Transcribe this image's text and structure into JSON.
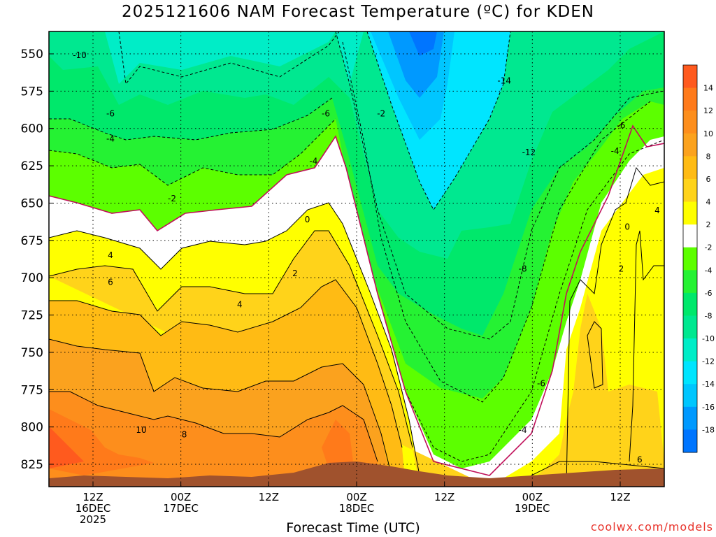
{
  "title": "2025121606 NAM Forecast Temperature (ºC) for KDEN",
  "xaxis_title": "Forecast Time (UTC)",
  "credit": "coolwx.com/models",
  "colors": {
    "t_ge_14": "#ff5a1e",
    "t_12_14": "#ff7a1a",
    "t_10_12": "#fd8e1c",
    "t_8_10": "#fba21e",
    "t_6_8": "#ffbb14",
    "t_4_6": "#ffd31a",
    "t_2_4": "#ffff00",
    "t_m2_2": "#ffffff",
    "t_m4_m2": "#5cff00",
    "t_m6_m4": "#25f233",
    "t_m8_m6": "#00e86b",
    "t_m10_m8": "#00e890",
    "t_m12_m10": "#00edc7",
    "t_m14_m12": "#00e5ff",
    "t_m16_m14": "#00c6ff",
    "t_m18_m16": "#0099ff",
    "t_le_m18": "#0075ff",
    "ground": "#a0522d",
    "zero_line": "#c0105a"
  },
  "chart_data": {
    "type": "heatmap",
    "title": "2025121606 NAM Forecast Temperature (ºC) for KDEN",
    "xlabel": "Forecast Time (UTC)",
    "ylabel": "",
    "ylim": [
      840,
      535
    ],
    "y_ticks": [
      550,
      575,
      600,
      625,
      650,
      675,
      700,
      725,
      750,
      775,
      800,
      825
    ],
    "x_ticks": [
      {
        "line1": "12Z",
        "line2": "16DEC",
        "line3": "2025"
      },
      {
        "line1": "00Z",
        "line2": "17DEC",
        "line3": ""
      },
      {
        "line1": "12Z",
        "line2": "",
        "line3": ""
      },
      {
        "line1": "00Z",
        "line2": "18DEC",
        "line3": ""
      },
      {
        "line1": "12Z",
        "line2": "",
        "line3": ""
      },
      {
        "line1": "00Z",
        "line2": "19DEC",
        "line3": ""
      },
      {
        "line1": "12Z",
        "line2": "",
        "line3": ""
      }
    ],
    "colorbar_levels": [
      14,
      12,
      10,
      8,
      6,
      4,
      2,
      -2,
      -4,
      -6,
      -8,
      -10,
      -12,
      -14,
      -16,
      -18
    ],
    "contour_labels": [
      {
        "text": "-10",
        "t": 0.05,
        "p": 551
      },
      {
        "text": "-6",
        "t": 0.1,
        "p": 590
      },
      {
        "text": "-4",
        "t": 0.1,
        "p": 607
      },
      {
        "text": "-6",
        "t": 0.45,
        "p": 590
      },
      {
        "text": "-2",
        "t": 0.54,
        "p": 590
      },
      {
        "text": "-4",
        "t": 0.43,
        "p": 622
      },
      {
        "text": "-2",
        "t": 0.2,
        "p": 647
      },
      {
        "text": "0",
        "t": 0.42,
        "p": 661
      },
      {
        "text": "4",
        "t": 0.1,
        "p": 685
      },
      {
        "text": "6",
        "t": 0.1,
        "p": 703
      },
      {
        "text": "2",
        "t": 0.4,
        "p": 697
      },
      {
        "text": "4",
        "t": 0.31,
        "p": 718
      },
      {
        "text": "10",
        "t": 0.15,
        "p": 802
      },
      {
        "text": "8",
        "t": 0.22,
        "p": 805
      },
      {
        "text": "-14",
        "t": 0.74,
        "p": 568
      },
      {
        "text": "-12",
        "t": 0.78,
        "p": 616
      },
      {
        "text": "-8",
        "t": 0.77,
        "p": 694
      },
      {
        "text": "-6",
        "t": 0.8,
        "p": 771
      },
      {
        "text": "-4",
        "t": 0.77,
        "p": 802
      },
      {
        "text": "-6",
        "t": 0.93,
        "p": 598
      },
      {
        "text": "-4",
        "t": 0.92,
        "p": 615
      },
      {
        "text": "0",
        "t": 0.94,
        "p": 666
      },
      {
        "text": "2",
        "t": 0.93,
        "p": 694
      },
      {
        "text": "4",
        "t": 1.02,
        "p": 655
      },
      {
        "text": "6",
        "t": 0.96,
        "p": 822
      }
    ]
  }
}
